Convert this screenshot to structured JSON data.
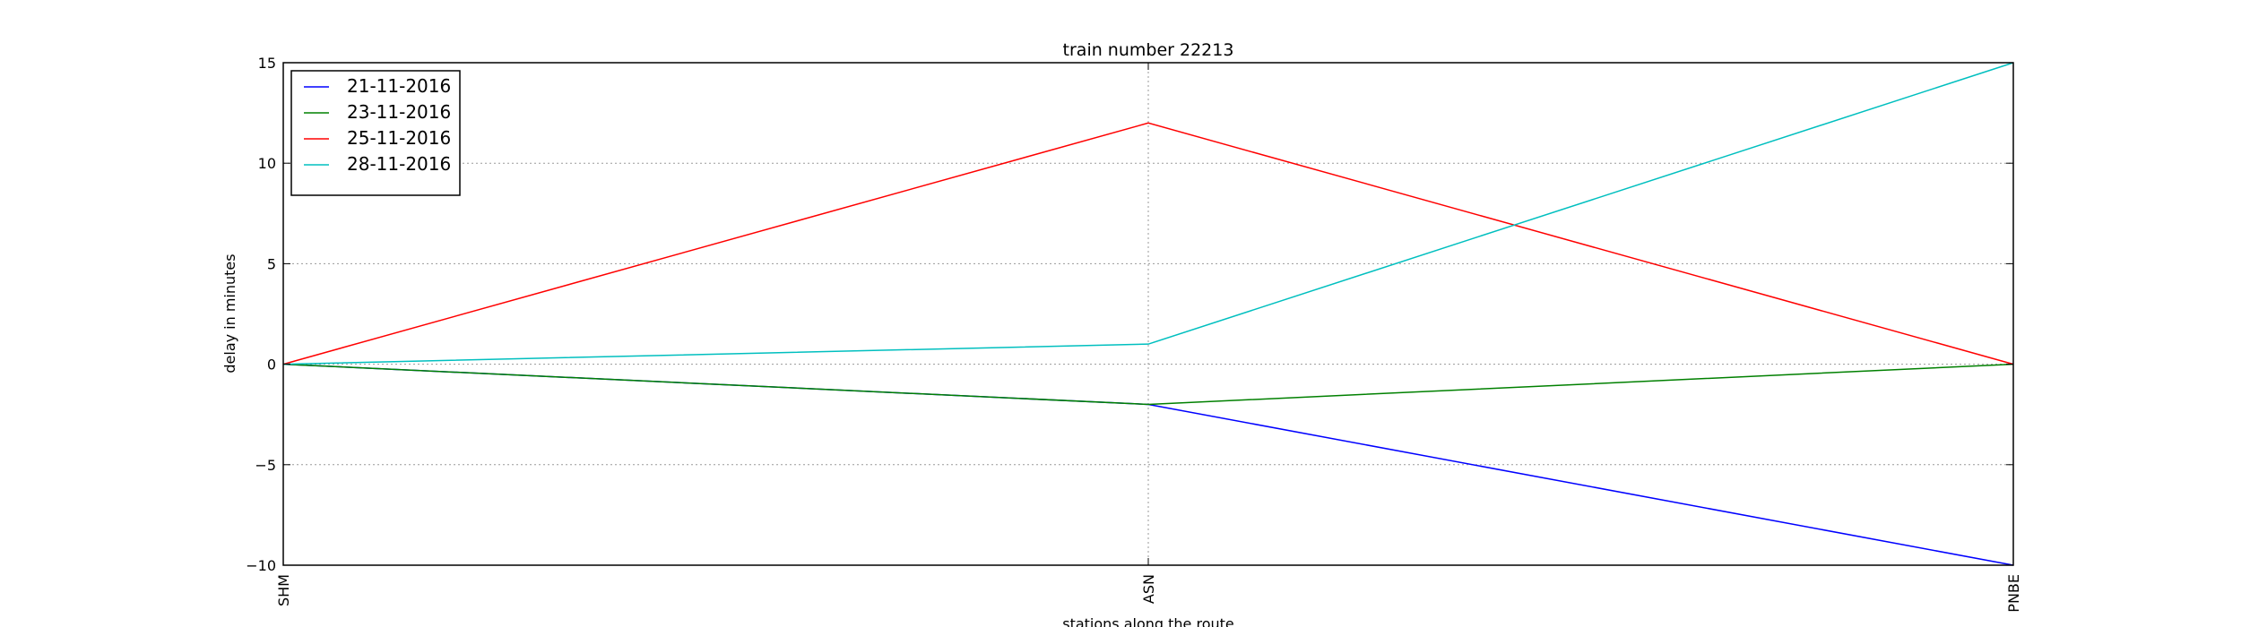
{
  "chart_data": {
    "type": "line",
    "title": "train number 22213",
    "xlabel": "stations along the route",
    "ylabel": "delay in minutes",
    "categories": [
      "SHM",
      "ASN",
      "PNBE"
    ],
    "ylim": [
      -10,
      15
    ],
    "yticks": [
      -10,
      -5,
      0,
      5,
      10,
      15
    ],
    "ytick_labels": [
      "−10",
      "−5",
      "0",
      "5",
      "10",
      "15"
    ],
    "grid": true,
    "legend_position": "top-left",
    "series": [
      {
        "name": "21-11-2016",
        "values": [
          0,
          -2,
          -10
        ],
        "color": "#0000ff"
      },
      {
        "name": "23-11-2016",
        "values": [
          0,
          -2,
          0
        ],
        "color": "#008000"
      },
      {
        "name": "25-11-2016",
        "values": [
          0,
          12,
          0
        ],
        "color": "#ff0000"
      },
      {
        "name": "28-11-2016",
        "values": [
          0,
          1,
          15
        ],
        "color": "#00bfbf"
      }
    ]
  }
}
